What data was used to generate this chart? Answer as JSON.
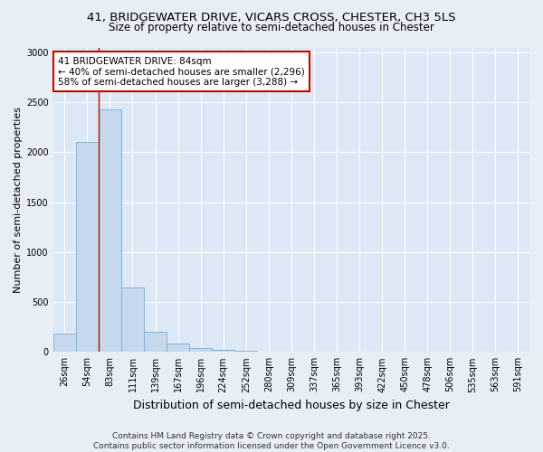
{
  "title_line1": "41, BRIDGEWATER DRIVE, VICARS CROSS, CHESTER, CH3 5LS",
  "title_line2": "Size of property relative to semi-detached houses in Chester",
  "xlabel": "Distribution of semi-detached houses by size in Chester",
  "ylabel": "Number of semi-detached properties",
  "footer_line1": "Contains HM Land Registry data © Crown copyright and database right 2025.",
  "footer_line2": "Contains public sector information licensed under the Open Government Licence v3.0.",
  "annotation_line1": "41 BRIDGEWATER DRIVE: 84sqm",
  "annotation_line2": "← 40% of semi-detached houses are smaller (2,296)",
  "annotation_line3": "58% of semi-detached houses are larger (3,288) →",
  "bar_labels": [
    "26sqm",
    "54sqm",
    "83sqm",
    "111sqm",
    "139sqm",
    "167sqm",
    "196sqm",
    "224sqm",
    "252sqm",
    "280sqm",
    "309sqm",
    "337sqm",
    "365sqm",
    "393sqm",
    "422sqm",
    "450sqm",
    "478sqm",
    "506sqm",
    "535sqm",
    "563sqm",
    "591sqm"
  ],
  "bar_values": [
    185,
    2100,
    2430,
    650,
    200,
    80,
    35,
    20,
    10,
    5,
    0,
    0,
    0,
    0,
    0,
    0,
    0,
    0,
    0,
    0,
    0
  ],
  "bar_color": "#c5d8ed",
  "bar_edge_color": "#7aafd4",
  "vline_index": 2,
  "vline_color": "#cc0000",
  "annotation_box_color": "#cc0000",
  "ylim": [
    0,
    3050
  ],
  "yticks": [
    0,
    500,
    1000,
    1500,
    2000,
    2500,
    3000
  ],
  "background_color": "#e8eef5",
  "plot_bg_color": "#dce8f5",
  "grid_color": "#ffffff",
  "title_fontsize": 9.5,
  "subtitle_fontsize": 8.5,
  "ylabel_fontsize": 8,
  "xlabel_fontsize": 9,
  "tick_fontsize": 7,
  "annotation_fontsize": 7.5,
  "footer_fontsize": 6.5
}
